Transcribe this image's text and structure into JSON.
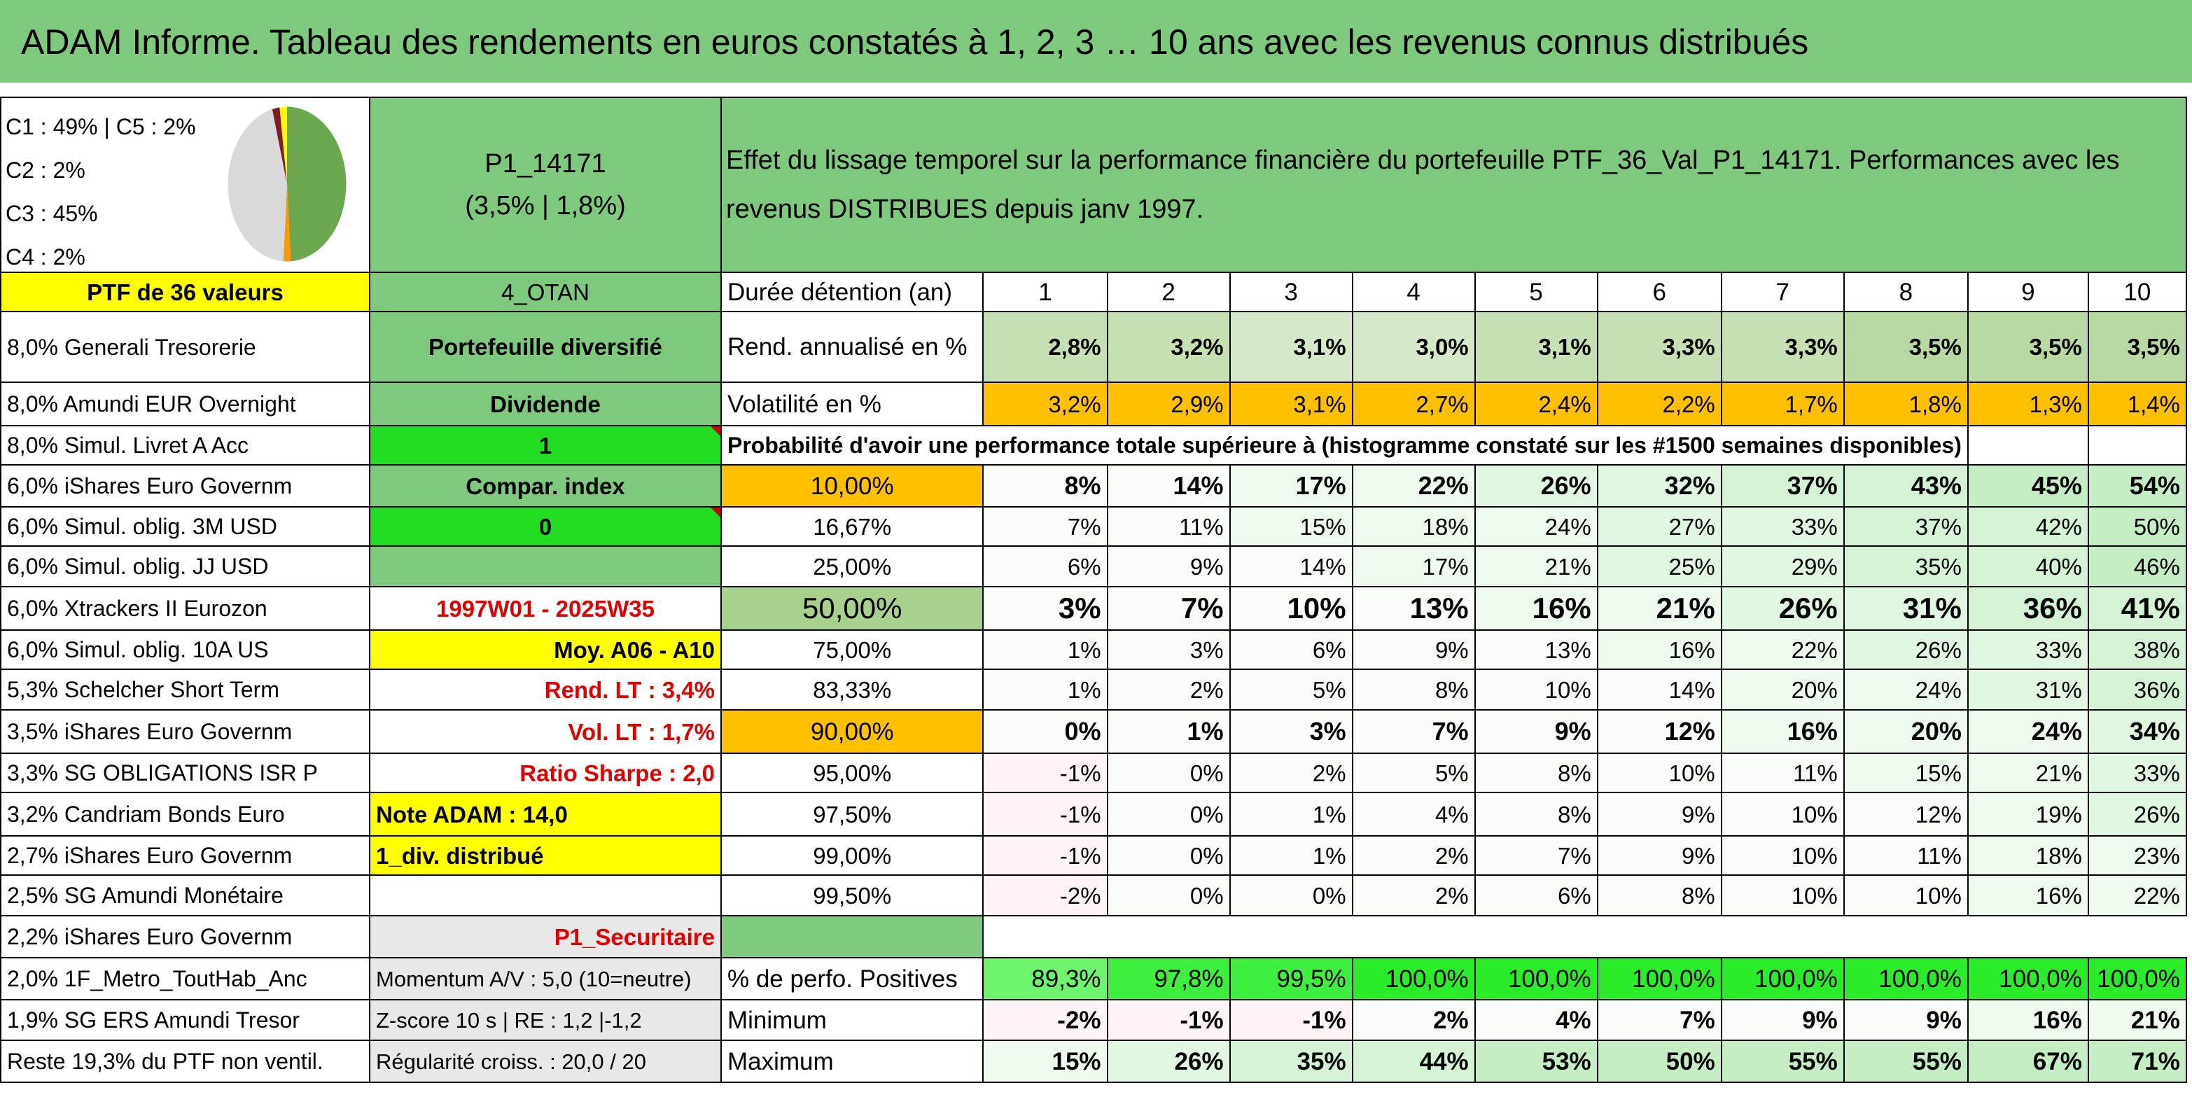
{
  "title": "ADAM Informe. Tableau des rendements en euros constatés à 1, 2, 3 … 10 ans avec les revenus connus distribués",
  "pie": {
    "labels": [
      "C1 : 49% | C5 : 2%",
      "C2 : 2%",
      "C3 : 45%",
      "C4 : 2%"
    ],
    "slices": [
      {
        "name": "C1",
        "value": 49,
        "color": "#6aa84f"
      },
      {
        "name": "C2",
        "value": 2,
        "color": "#ff9900"
      },
      {
        "name": "C3",
        "value": 45,
        "color": "#d9d9d9"
      },
      {
        "name": "C4",
        "value": 2,
        "color": "#7f1d1d"
      },
      {
        "name": "C5",
        "value": 2,
        "color": "#ffff00"
      }
    ]
  },
  "portfolio": {
    "id": "P1_14171",
    "rates": "(3,5% | 1,8%)",
    "description": "Effet du lissage temporel sur la performance financière du portefeuille PTF_36_Val_P1_14171. Performances avec les revenus DISTRIBUES depuis janv 1997.",
    "ptf_label": "PTF de 36 valeurs",
    "otan": "4_OTAN",
    "diversified": "Portefeuille diversifié",
    "dividende": "Dividende",
    "one": "1",
    "compar": "Compar. index",
    "zero": "0",
    "period": "1997W01 - 2025W35",
    "moy": "Moy. A06 - A10",
    "rend_lt": "Rend. LT : 3,4%",
    "vol_lt": "Vol. LT : 1,7%",
    "sharpe": "Ratio Sharpe : 2,0",
    "note": "Note ADAM : 14,0",
    "div": "1_div. distribué",
    "secu": "P1_Securitaire",
    "momentum": "Momentum A/V : 5,0 (10=neutre)",
    "zscore": "Z-score 10 s | RE : 1,2 |-1,2",
    "regularite": "Régularité croiss. : 20,0 / 20"
  },
  "holdings": [
    "8,0% Generali Tresorerie",
    "8,0% Amundi EUR Overnight",
    "8,0% Simul. Livret A Acc",
    "6,0% iShares Euro Governm",
    "6,0% Simul. oblig. 3M USD",
    "6,0% Simul. oblig. JJ USD",
    "6,0% Xtrackers II Eurozon",
    "6,0% Simul. oblig. 10A US",
    "5,3% Schelcher Short Term",
    "3,5% iShares Euro Governm",
    "3,3% SG OBLIGATIONS ISR P",
    "3,2% Candriam Bonds Euro",
    "2,7% iShares Euro Governm",
    "2,5% SG Amundi Monétaire",
    "2,2% iShares Euro Governm",
    "2,0% 1F_Metro_ToutHab_Anc",
    "1,9% SG ERS Amundi Tresor",
    "Reste 19,3% du PTF non ventil."
  ],
  "stats": {
    "duree_label": "Durée détention (an)",
    "years": [
      "1",
      "2",
      "3",
      "4",
      "5",
      "6",
      "7",
      "8",
      "9",
      "10"
    ],
    "rend_label": "Rend. annualisé en %",
    "rend": [
      "2,8%",
      "3,2%",
      "3,1%",
      "3,0%",
      "3,1%",
      "3,3%",
      "3,3%",
      "3,5%",
      "3,5%",
      "3,5%"
    ],
    "vol_label": "Volatilité en %",
    "vol": [
      "3,2%",
      "2,9%",
      "3,1%",
      "2,7%",
      "2,4%",
      "2,2%",
      "1,7%",
      "1,8%",
      "1,3%",
      "1,4%"
    ],
    "prob_label": "Probabilité d'avoir une performance totale supérieure à (histogramme constaté sur les #1500 semaines disponibles)",
    "quantiles": [
      {
        "q": "10,00%",
        "vals": [
          "8%",
          "14%",
          "17%",
          "22%",
          "26%",
          "32%",
          "37%",
          "43%",
          "45%",
          "54%"
        ]
      },
      {
        "q": "16,67%",
        "vals": [
          "7%",
          "11%",
          "15%",
          "18%",
          "24%",
          "27%",
          "33%",
          "37%",
          "42%",
          "50%"
        ]
      },
      {
        "q": "25,00%",
        "vals": [
          "6%",
          "9%",
          "14%",
          "17%",
          "21%",
          "25%",
          "29%",
          "35%",
          "40%",
          "46%"
        ]
      },
      {
        "q": "50,00%",
        "vals": [
          "3%",
          "7%",
          "10%",
          "13%",
          "16%",
          "21%",
          "26%",
          "31%",
          "36%",
          "41%"
        ]
      },
      {
        "q": "75,00%",
        "vals": [
          "1%",
          "3%",
          "6%",
          "9%",
          "13%",
          "16%",
          "22%",
          "26%",
          "33%",
          "38%"
        ]
      },
      {
        "q": "83,33%",
        "vals": [
          "1%",
          "2%",
          "5%",
          "8%",
          "10%",
          "14%",
          "20%",
          "24%",
          "31%",
          "36%"
        ]
      },
      {
        "q": "90,00%",
        "vals": [
          "0%",
          "1%",
          "3%",
          "7%",
          "9%",
          "12%",
          "16%",
          "20%",
          "24%",
          "34%"
        ]
      },
      {
        "q": "95,00%",
        "vals": [
          "-1%",
          "0%",
          "2%",
          "5%",
          "8%",
          "10%",
          "11%",
          "15%",
          "21%",
          "33%"
        ]
      },
      {
        "q": "97,50%",
        "vals": [
          "-1%",
          "0%",
          "1%",
          "4%",
          "8%",
          "9%",
          "10%",
          "12%",
          "19%",
          "26%"
        ]
      },
      {
        "q": "99,00%",
        "vals": [
          "-1%",
          "0%",
          "1%",
          "2%",
          "7%",
          "9%",
          "10%",
          "11%",
          "18%",
          "23%"
        ]
      },
      {
        "q": "99,50%",
        "vals": [
          "-2%",
          "0%",
          "0%",
          "2%",
          "6%",
          "8%",
          "10%",
          "10%",
          "16%",
          "22%"
        ]
      }
    ],
    "pos_label": "% de perfo. Positives",
    "pos": [
      "89,3%",
      "97,8%",
      "99,5%",
      "100,0%",
      "100,0%",
      "100,0%",
      "100,0%",
      "100,0%",
      "100,0%",
      "100,0%"
    ],
    "min_label": "Minimum",
    "min": [
      "-2%",
      "-1%",
      "-1%",
      "2%",
      "4%",
      "7%",
      "9%",
      "9%",
      "16%",
      "21%"
    ],
    "max_label": "Maximum",
    "max": [
      "15%",
      "26%",
      "35%",
      "44%",
      "53%",
      "50%",
      "55%",
      "55%",
      "67%",
      "71%"
    ]
  }
}
